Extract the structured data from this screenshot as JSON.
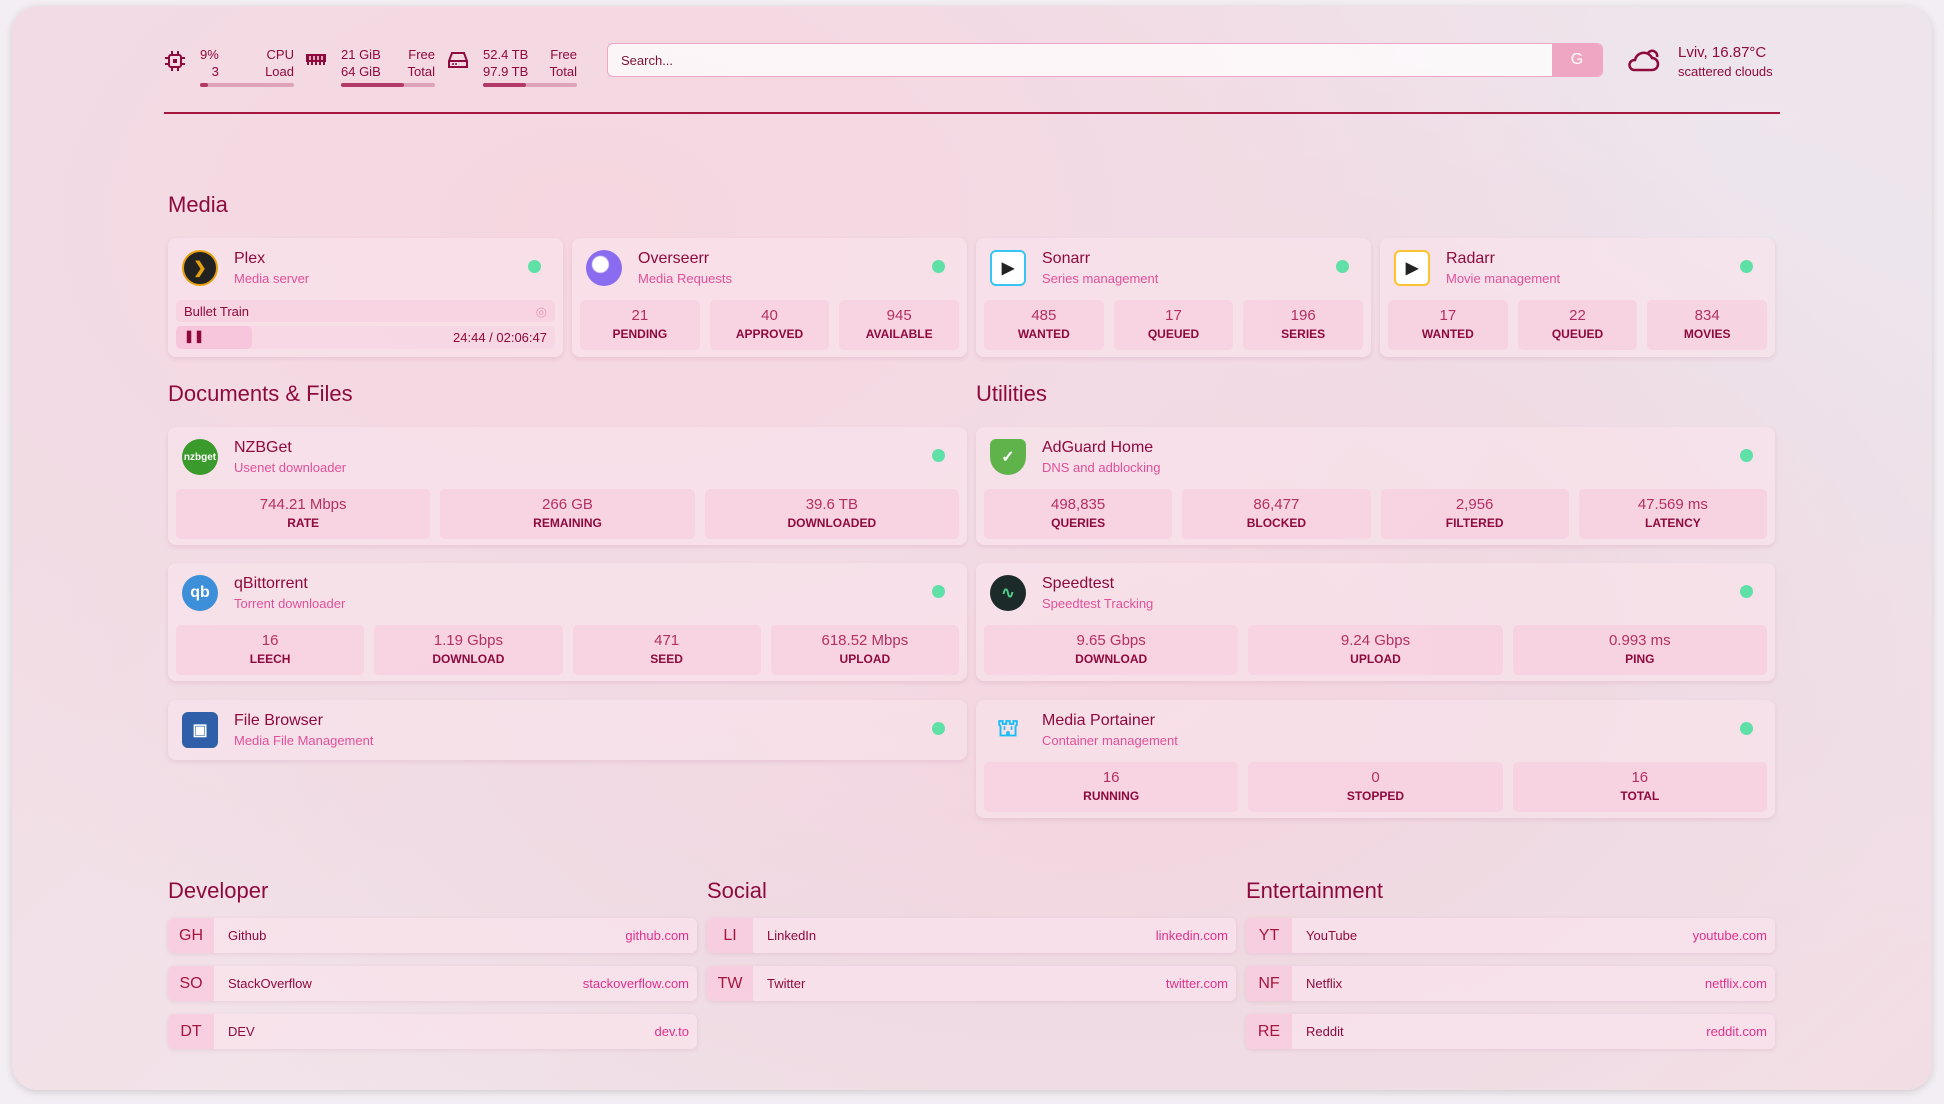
{
  "header": {
    "cpu": {
      "value": "9%",
      "cores": "3",
      "label1": "CPU",
      "label2": "Load",
      "fill": 0.09
    },
    "memory": {
      "value": "21 GiB",
      "total": "64 GiB",
      "label1": "Free",
      "label2": "Total",
      "fill": 0.67
    },
    "disk": {
      "value": "52.4 TB",
      "total": "97.9 TB",
      "label1": "Free",
      "label2": "Total",
      "fill": 0.46
    },
    "search": {
      "placeholder": "Search...",
      "engine_button": "G"
    },
    "weather": {
      "location_temp": "Lviv, 16.87°C",
      "condition": "scattered clouds",
      "icon": "cloud-sun-icon"
    }
  },
  "colors": {
    "accent": "#8e0a3e",
    "subtitle": "#e0509a",
    "status_online": "#5fe0a6"
  },
  "sections": {
    "media": "Media",
    "documents": "Documents & Files",
    "utilities": "Utilities",
    "developer": "Developer",
    "social": "Social",
    "entertainment": "Entertainment"
  },
  "plex": {
    "name": "Plex",
    "desc": "Media server",
    "now_playing": "Bullet Train",
    "time": "24:44 / 02:06:47",
    "progress": 0.2
  },
  "services": [
    {
      "name": "Overseerr",
      "desc": "Media Requests",
      "icon": "overseerr-icon",
      "stats": [
        {
          "v": "21",
          "l": "PENDING"
        },
        {
          "v": "40",
          "l": "APPROVED"
        },
        {
          "v": "945",
          "l": "AVAILABLE"
        }
      ]
    },
    {
      "name": "Sonarr",
      "desc": "Series management",
      "icon": "sonarr-icon",
      "stats": [
        {
          "v": "485",
          "l": "WANTED"
        },
        {
          "v": "17",
          "l": "QUEUED"
        },
        {
          "v": "196",
          "l": "SERIES"
        }
      ]
    },
    {
      "name": "Radarr",
      "desc": "Movie management",
      "icon": "radarr-icon",
      "stats": [
        {
          "v": "17",
          "l": "WANTED"
        },
        {
          "v": "22",
          "l": "QUEUED"
        },
        {
          "v": "834",
          "l": "MOVIES"
        }
      ]
    },
    {
      "name": "NZBGet",
      "desc": "Usenet downloader",
      "icon": "nzbget-icon",
      "stats": [
        {
          "v": "744.21 Mbps",
          "l": "RATE"
        },
        {
          "v": "266 GB",
          "l": "REMAINING"
        },
        {
          "v": "39.6 TB",
          "l": "DOWNLOADED"
        }
      ]
    },
    {
      "name": "qBittorrent",
      "desc": "Torrent downloader",
      "icon": "qbittorrent-icon",
      "stats": [
        {
          "v": "16",
          "l": "LEECH"
        },
        {
          "v": "1.19 Gbps",
          "l": "DOWNLOAD"
        },
        {
          "v": "471",
          "l": "SEED"
        },
        {
          "v": "618.52 Mbps",
          "l": "UPLOAD"
        }
      ]
    },
    {
      "name": "File Browser",
      "desc": "Media File Management",
      "icon": "file-browser-icon",
      "stats": []
    },
    {
      "name": "AdGuard Home",
      "desc": "DNS and adblocking",
      "icon": "adguard-icon",
      "stats": [
        {
          "v": "498,835",
          "l": "QUERIES"
        },
        {
          "v": "86,477",
          "l": "BLOCKED"
        },
        {
          "v": "2,956",
          "l": "FILTERED"
        },
        {
          "v": "47.569 ms",
          "l": "LATENCY"
        }
      ]
    },
    {
      "name": "Speedtest",
      "desc": "Speedtest Tracking",
      "icon": "speedtest-icon",
      "stats": [
        {
          "v": "9.65 Gbps",
          "l": "DOWNLOAD"
        },
        {
          "v": "9.24 Gbps",
          "l": "UPLOAD"
        },
        {
          "v": "0.993 ms",
          "l": "PING"
        }
      ]
    },
    {
      "name": "Media Portainer",
      "desc": "Container management",
      "icon": "portainer-icon",
      "stats": [
        {
          "v": "16",
          "l": "RUNNING"
        },
        {
          "v": "0",
          "l": "STOPPED"
        },
        {
          "v": "16",
          "l": "TOTAL"
        }
      ]
    }
  ],
  "bookmarks": [
    [
      {
        "abbr": "GH",
        "name": "Github",
        "url": "github.com"
      },
      {
        "abbr": "SO",
        "name": "StackOverflow",
        "url": "stackoverflow.com"
      },
      {
        "abbr": "DT",
        "name": "DEV",
        "url": "dev.to"
      }
    ],
    [
      {
        "abbr": "LI",
        "name": "LinkedIn",
        "url": "linkedin.com"
      },
      {
        "abbr": "TW",
        "name": "Twitter",
        "url": "twitter.com"
      }
    ],
    [
      {
        "abbr": "YT",
        "name": "YouTube",
        "url": "youtube.com"
      },
      {
        "abbr": "NF",
        "name": "Netflix",
        "url": "netflix.com"
      },
      {
        "abbr": "RE",
        "name": "Reddit",
        "url": "reddit.com"
      }
    ]
  ]
}
